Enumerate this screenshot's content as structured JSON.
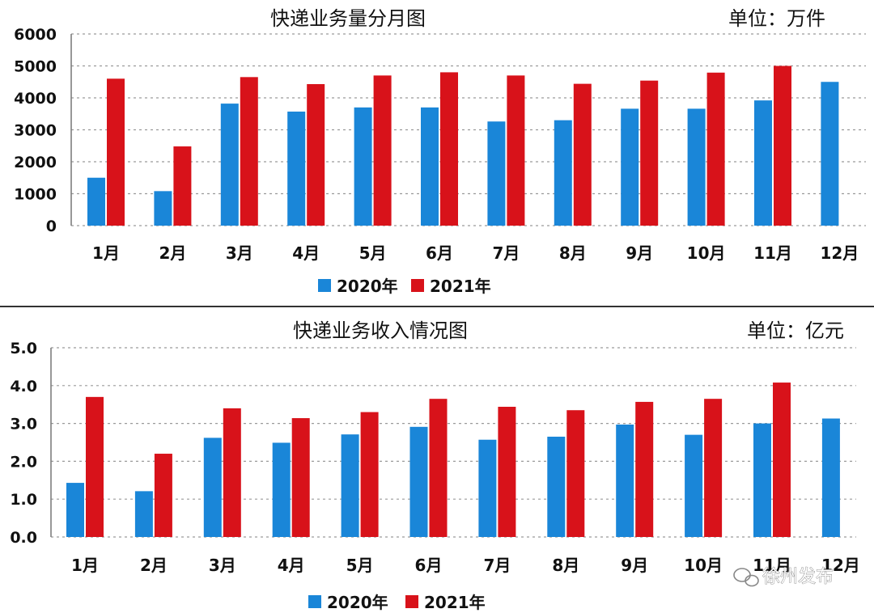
{
  "colors": {
    "s2020": "#1a86d8",
    "s2021": "#d8121a"
  },
  "watermark": {
    "text": "徐州发布",
    "icon": "wechat-icon"
  },
  "chart_data": [
    {
      "type": "bar",
      "title": "快递业务量分月图",
      "unit": "单位：万件",
      "categories": [
        "1月",
        "2月",
        "3月",
        "4月",
        "5月",
        "6月",
        "7月",
        "8月",
        "9月",
        "10月",
        "11月",
        "12月"
      ],
      "yticks": [
        "0",
        "1000",
        "2000",
        "3000",
        "4000",
        "5000",
        "6000"
      ],
      "ylim": [
        0,
        6000
      ],
      "legend_position": "bottom-center",
      "series": [
        {
          "name": "2020年",
          "values": [
            1500,
            1080,
            3820,
            3570,
            3700,
            3700,
            3260,
            3300,
            3660,
            3660,
            3920,
            4500
          ]
        },
        {
          "name": "2021年",
          "values": [
            4600,
            2480,
            4650,
            4430,
            4700,
            4800,
            4700,
            4440,
            4540,
            4790,
            5000,
            null
          ]
        }
      ]
    },
    {
      "type": "bar",
      "title": "快递业务收入情况图",
      "unit": "单位：亿元",
      "categories": [
        "1月",
        "2月",
        "3月",
        "4月",
        "5月",
        "6月",
        "7月",
        "8月",
        "9月",
        "10月",
        "11月",
        "12月"
      ],
      "yticks": [
        "0.0",
        "1.0",
        "2.0",
        "3.0",
        "4.0",
        "5.0"
      ],
      "ylim": [
        0,
        5
      ],
      "legend_position": "bottom-center",
      "series": [
        {
          "name": "2020年",
          "values": [
            1.43,
            1.21,
            2.62,
            2.49,
            2.71,
            2.91,
            2.57,
            2.65,
            2.97,
            2.7,
            3.0,
            3.13
          ]
        },
        {
          "name": "2021年",
          "values": [
            3.7,
            2.2,
            3.4,
            3.14,
            3.3,
            3.65,
            3.44,
            3.35,
            3.57,
            3.65,
            4.08,
            null
          ]
        }
      ]
    }
  ]
}
